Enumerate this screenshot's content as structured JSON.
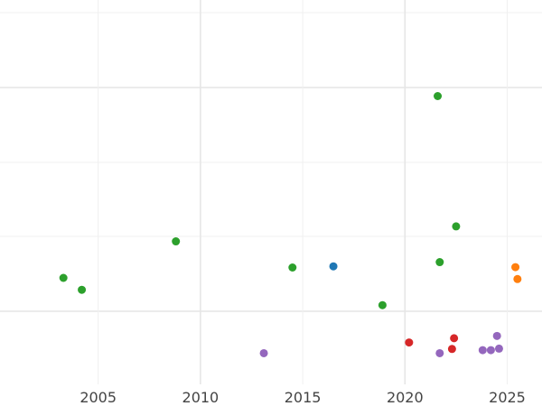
{
  "chart_data": {
    "type": "scatter",
    "title": "",
    "xlabel": "",
    "ylabel": "",
    "xlim": [
      2000.2,
      2026.7
    ],
    "ylim": [
      0,
      1
    ],
    "x_ticks": [
      "2005",
      "2010",
      "2015",
      "2020",
      "2025"
    ],
    "y_ticks": [],
    "grid": true,
    "legend": "none",
    "colors": {
      "grid": "#e6e6e6",
      "grid_minor": "#f0f0f0",
      "tick_text": "#444444",
      "blue": "#1f77b4",
      "orange": "#ff7f0e",
      "green": "#2ca02c",
      "red": "#d62728",
      "purple": "#9467bd"
    },
    "series": [
      {
        "color": "#1f77b4",
        "points": [
          {
            "x": 2016.5,
            "y": 0.307
          }
        ]
      },
      {
        "color": "#ff7f0e",
        "points": [
          {
            "x": 2025.4,
            "y": 0.305
          },
          {
            "x": 2025.5,
            "y": 0.274
          }
        ]
      },
      {
        "color": "#2ca02c",
        "points": [
          {
            "x": 2003.3,
            "y": 0.277
          },
          {
            "x": 2004.2,
            "y": 0.246
          },
          {
            "x": 2008.8,
            "y": 0.372
          },
          {
            "x": 2014.5,
            "y": 0.304
          },
          {
            "x": 2018.9,
            "y": 0.206
          },
          {
            "x": 2021.6,
            "y": 0.75
          },
          {
            "x": 2021.7,
            "y": 0.318
          },
          {
            "x": 2022.5,
            "y": 0.411
          }
        ]
      },
      {
        "color": "#d62728",
        "points": [
          {
            "x": 2020.2,
            "y": 0.109
          },
          {
            "x": 2022.3,
            "y": 0.092
          },
          {
            "x": 2022.4,
            "y": 0.12
          }
        ]
      },
      {
        "color": "#9467bd",
        "points": [
          {
            "x": 2013.1,
            "y": 0.081
          },
          {
            "x": 2021.7,
            "y": 0.081
          },
          {
            "x": 2023.8,
            "y": 0.089
          },
          {
            "x": 2024.2,
            "y": 0.089
          },
          {
            "x": 2024.5,
            "y": 0.126
          },
          {
            "x": 2024.6,
            "y": 0.093
          }
        ]
      }
    ]
  }
}
